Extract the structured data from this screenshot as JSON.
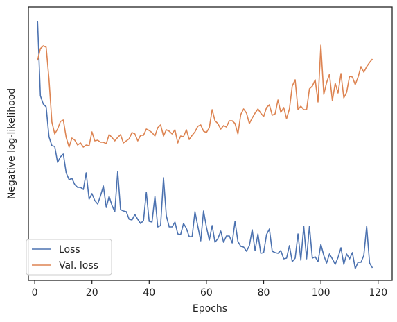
{
  "chart_data": {
    "type": "line",
    "xlabel": "Epochs",
    "ylabel": "Negative log-likelihood",
    "x": [
      1,
      2,
      3,
      4,
      5,
      6,
      7,
      8,
      9,
      10,
      11,
      12,
      13,
      14,
      15,
      16,
      17,
      18,
      19,
      20,
      21,
      22,
      23,
      24,
      25,
      26,
      27,
      28,
      29,
      30,
      31,
      32,
      33,
      34,
      35,
      36,
      37,
      38,
      39,
      40,
      41,
      42,
      43,
      44,
      45,
      46,
      47,
      48,
      49,
      50,
      51,
      52,
      53,
      54,
      55,
      56,
      57,
      58,
      59,
      60,
      61,
      62,
      63,
      64,
      65,
      66,
      67,
      68,
      69,
      70,
      71,
      72,
      73,
      74,
      75,
      76,
      77,
      78,
      79,
      80,
      81,
      82,
      83,
      84,
      85,
      86,
      87,
      88,
      89,
      90,
      91,
      92,
      93,
      94,
      95,
      96,
      97,
      98,
      99,
      100,
      101,
      102,
      103,
      104,
      105,
      106,
      107,
      108,
      109,
      110,
      111,
      112,
      113,
      114,
      115,
      116,
      117,
      118
    ],
    "series": [
      {
        "name": "Loss",
        "color": "#4c72b0",
        "values": [
          374,
          266,
          254,
          250,
          207,
          194,
          193,
          170,
          178,
          182,
          155,
          145,
          147,
          138,
          134,
          134,
          131,
          155,
          117,
          125,
          115,
          110,
          122,
          136,
          105,
          121,
          108,
          99,
          157,
          102,
          100,
          99,
          88,
          87,
          95,
          88,
          82,
          86,
          127,
          85,
          84,
          121,
          77,
          79,
          148,
          93,
          77,
          77,
          84,
          67,
          66,
          82,
          75,
          63,
          63,
          99,
          78,
          57,
          100,
          77,
          58,
          79,
          55,
          60,
          71,
          55,
          64,
          64,
          54,
          85,
          56,
          49,
          48,
          42,
          50,
          73,
          43,
          67,
          39,
          40,
          66,
          74,
          42,
          40,
          39,
          43,
          31,
          32,
          50,
          27,
          32,
          67,
          29,
          78,
          31,
          78,
          32,
          34,
          27,
          52,
          36,
          25,
          38,
          31,
          23,
          33,
          47,
          23,
          38,
          31,
          40,
          17,
          26,
          26,
          36,
          78,
          25,
          18
        ]
      },
      {
        "name": "Val. loss",
        "color": "#dd8452",
        "values": [
          317,
          334,
          338,
          336,
          290,
          228,
          211,
          218,
          229,
          231,
          206,
          192,
          205,
          202,
          195,
          198,
          192,
          195,
          194,
          214,
          201,
          202,
          199,
          199,
          197,
          210,
          206,
          201,
          206,
          210,
          198,
          201,
          204,
          213,
          211,
          201,
          209,
          209,
          218,
          216,
          213,
          208,
          220,
          224,
          208,
          217,
          215,
          211,
          217,
          198,
          208,
          207,
          217,
          203,
          209,
          214,
          222,
          224,
          215,
          213,
          220,
          246,
          230,
          226,
          218,
          223,
          221,
          230,
          230,
          226,
          211,
          239,
          247,
          241,
          226,
          234,
          241,
          247,
          241,
          236,
          249,
          253,
          238,
          240,
          260,
          242,
          249,
          233,
          247,
          280,
          289,
          246,
          251,
          246,
          246,
          276,
          280,
          289,
          257,
          339,
          268,
          285,
          297,
          259,
          284,
          270,
          298,
          263,
          271,
          294,
          293,
          282,
          293,
          308,
          300,
          308,
          314,
          319
        ]
      }
    ],
    "xlim": [
      -2.2,
      124.9
    ],
    "xticks": [
      0,
      20,
      40,
      60,
      80,
      100,
      120
    ],
    "ylim": [
      0,
      394
    ],
    "legend": "lower left"
  }
}
